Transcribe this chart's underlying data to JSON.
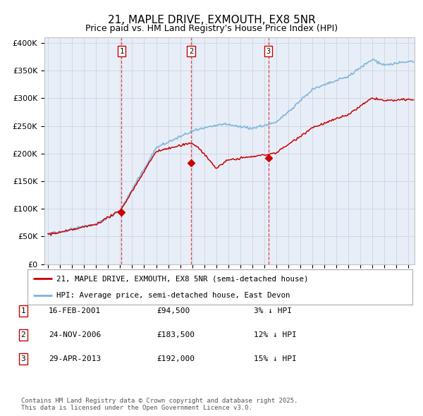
{
  "title": "21, MAPLE DRIVE, EXMOUTH, EX8 5NR",
  "subtitle": "Price paid vs. HM Land Registry's House Price Index (HPI)",
  "ylabel_ticks": [
    "£0",
    "£50K",
    "£100K",
    "£150K",
    "£200K",
    "£250K",
    "£300K",
    "£350K",
    "£400K"
  ],
  "ytick_values": [
    0,
    50000,
    100000,
    150000,
    200000,
    250000,
    300000,
    350000,
    400000
  ],
  "ylim": [
    0,
    410000
  ],
  "xlim_start": 1994.7,
  "xlim_end": 2025.5,
  "hpi_color": "#7ab4d8",
  "price_color": "#cc0000",
  "vline_color": "#cc0000",
  "sale_dates": [
    2001.12,
    2006.9,
    2013.33
  ],
  "sale_prices": [
    94500,
    183500,
    192000
  ],
  "sale_labels": [
    "1",
    "2",
    "3"
  ],
  "legend_label_price": "21, MAPLE DRIVE, EXMOUTH, EX8 5NR (semi-detached house)",
  "legend_label_hpi": "HPI: Average price, semi-detached house, East Devon",
  "table_rows": [
    [
      "1",
      "16-FEB-2001",
      "£94,500",
      "3% ↓ HPI"
    ],
    [
      "2",
      "24-NOV-2006",
      "£183,500",
      "12% ↓ HPI"
    ],
    [
      "3",
      "29-APR-2013",
      "£192,000",
      "15% ↓ HPI"
    ]
  ],
  "footnote": "Contains HM Land Registry data © Crown copyright and database right 2025.\nThis data is licensed under the Open Government Licence v3.0.",
  "background_color": "#ffffff",
  "plot_bg_color": "#e8eef8"
}
